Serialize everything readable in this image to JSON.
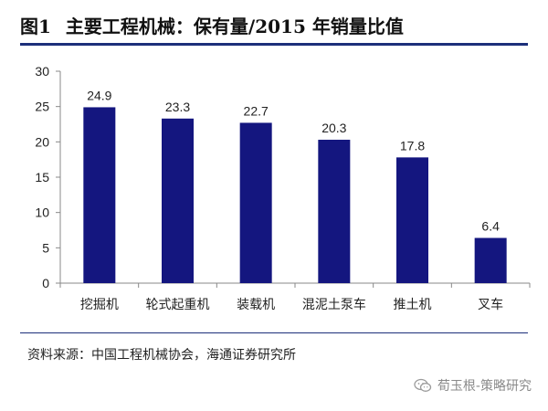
{
  "header": {
    "figure_label": "图1",
    "title": "主要工程机械：保有量/2015 年销量比值"
  },
  "source": "资料来源：中国工程机械协会，海通证券研究所",
  "watermark": {
    "text": "荀玉根-策略研究",
    "icon": "wechat-icon"
  },
  "colors": {
    "bar": "#14167f",
    "rule": "#1c2f7a",
    "axis": "#888888"
  },
  "chart_data": {
    "type": "bar",
    "categories": [
      "挖掘机",
      "轮式起重机",
      "装载机",
      "混泥土泵车",
      "推土机",
      "叉车"
    ],
    "values": [
      24.9,
      23.3,
      22.7,
      20.3,
      17.8,
      6.4
    ],
    "title": "主要工程机械：保有量/2015 年销量比值",
    "xlabel": "",
    "ylabel": "",
    "ylim": [
      0,
      30
    ],
    "yticks": [
      0,
      5,
      10,
      15,
      20,
      25,
      30
    ],
    "data_labels": true,
    "grid": false,
    "legend": "none"
  }
}
